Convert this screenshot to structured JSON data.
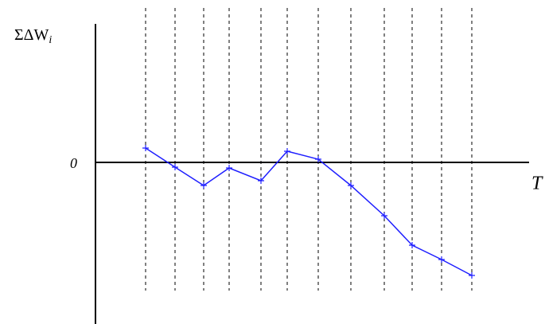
{
  "chart_data": {
    "type": "line",
    "y_label": "ΣΔW",
    "y_label_subscript": "i",
    "x_label": "T",
    "x": [
      6.3,
      10,
      13.6,
      16.8,
      20.8,
      24.1,
      28,
      32.1,
      36.3,
      39.8,
      43.5,
      47.3
    ],
    "series": [
      {
        "color": "#1f1fff",
        "values": [
          1.8,
          -0.6,
          -2.9,
          -0.7,
          -2.3,
          1.4,
          0.4,
          -2.9,
          -6.7,
          -10.4,
          -12.2,
          -14.2
        ]
      }
    ],
    "xlim": [
      0,
      54.5
    ],
    "ylim": [
      -20.3,
      17.4
    ],
    "yticks": [
      0
    ],
    "grid": true
  }
}
